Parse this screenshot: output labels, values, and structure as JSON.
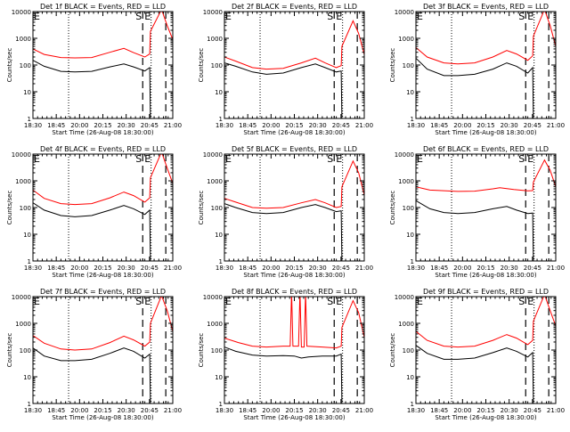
{
  "common": {
    "ylabel": "Counts/sec",
    "xlabel": "Start Time (26-Aug-08 18:30:00)",
    "x_ticks": [
      "18:30",
      "18:45",
      "20:00",
      "20:15",
      "20:30",
      "20:45",
      "21:00"
    ],
    "y_ticks": [
      "1",
      "10",
      "100",
      "1000",
      "10000"
    ],
    "y_log": true,
    "ylim": [
      1,
      10000
    ],
    "colors": {
      "events": "#000000",
      "lld": "#ff0000",
      "axes": "#000000"
    },
    "markers": {
      "left": "E",
      "middle": "S",
      "right": "E"
    }
  },
  "chart_data": [
    {
      "type": "line",
      "title": "Det 1f BLACK = Events, RED = LLD",
      "series": [
        {
          "name": "Events",
          "color": "#000000",
          "points": [
            [
              0,
              150
            ],
            [
              0.08,
              90
            ],
            [
              0.2,
              58
            ],
            [
              0.3,
              55
            ],
            [
              0.42,
              58
            ],
            [
              0.55,
              85
            ],
            [
              0.65,
              110
            ],
            [
              0.72,
              85
            ],
            [
              0.8,
              60
            ],
            [
              0.835,
              80
            ],
            [
              0.84,
              1
            ]
          ]
        },
        {
          "name": "LLD",
          "color": "#ff0000",
          "points": [
            [
              0,
              400
            ],
            [
              0.08,
              250
            ],
            [
              0.2,
              190
            ],
            [
              0.3,
              185
            ],
            [
              0.42,
              190
            ],
            [
              0.55,
              300
            ],
            [
              0.65,
              420
            ],
            [
              0.72,
              290
            ],
            [
              0.8,
              200
            ],
            [
              0.835,
              260
            ],
            [
              0.84,
              1800
            ],
            [
              0.92,
              12000
            ],
            [
              0.96,
              3000
            ],
            [
              1,
              900
            ]
          ]
        }
      ]
    },
    {
      "type": "line",
      "title": "Det 2f BLACK = Events, RED = LLD",
      "series": [
        {
          "name": "Events",
          "color": "#000000",
          "points": [
            [
              0,
              120
            ],
            [
              0.08,
              90
            ],
            [
              0.2,
              55
            ],
            [
              0.3,
              45
            ],
            [
              0.42,
              50
            ],
            [
              0.55,
              80
            ],
            [
              0.65,
              110
            ],
            [
              0.72,
              80
            ],
            [
              0.8,
              55
            ],
            [
              0.835,
              60
            ],
            [
              0.84,
              1
            ]
          ]
        },
        {
          "name": "LLD",
          "color": "#ff0000",
          "points": [
            [
              0,
              200
            ],
            [
              0.08,
              140
            ],
            [
              0.2,
              80
            ],
            [
              0.3,
              70
            ],
            [
              0.42,
              75
            ],
            [
              0.55,
              120
            ],
            [
              0.65,
              180
            ],
            [
              0.72,
              120
            ],
            [
              0.8,
              80
            ],
            [
              0.835,
              95
            ],
            [
              0.84,
              500
            ],
            [
              0.92,
              4500
            ],
            [
              0.96,
              1500
            ],
            [
              1,
              250
            ]
          ]
        }
      ]
    },
    {
      "type": "line",
      "title": "Det 3f BLACK = Events, RED = LLD",
      "series": [
        {
          "name": "Events",
          "color": "#000000",
          "points": [
            [
              0,
              180
            ],
            [
              0.08,
              70
            ],
            [
              0.2,
              40
            ],
            [
              0.3,
              40
            ],
            [
              0.42,
              45
            ],
            [
              0.55,
              70
            ],
            [
              0.65,
              120
            ],
            [
              0.72,
              90
            ],
            [
              0.8,
              50
            ],
            [
              0.835,
              80
            ],
            [
              0.84,
              1
            ]
          ]
        },
        {
          "name": "LLD",
          "color": "#ff0000",
          "points": [
            [
              0,
              450
            ],
            [
              0.08,
              200
            ],
            [
              0.2,
              120
            ],
            [
              0.3,
              110
            ],
            [
              0.42,
              120
            ],
            [
              0.55,
              200
            ],
            [
              0.65,
              350
            ],
            [
              0.72,
              260
            ],
            [
              0.8,
              150
            ],
            [
              0.835,
              220
            ],
            [
              0.84,
              1200
            ],
            [
              0.92,
              12000
            ],
            [
              0.96,
              3000
            ],
            [
              1,
              500
            ]
          ]
        }
      ]
    },
    {
      "type": "line",
      "title": "Det 4f BLACK = Events, RED = LLD",
      "series": [
        {
          "name": "Events",
          "color": "#000000",
          "points": [
            [
              0,
              150
            ],
            [
              0.08,
              80
            ],
            [
              0.2,
              50
            ],
            [
              0.3,
              45
            ],
            [
              0.42,
              50
            ],
            [
              0.55,
              80
            ],
            [
              0.65,
              120
            ],
            [
              0.72,
              90
            ],
            [
              0.8,
              55
            ],
            [
              0.835,
              80
            ],
            [
              0.84,
              1
            ]
          ]
        },
        {
          "name": "LLD",
          "color": "#ff0000",
          "points": [
            [
              0,
              450
            ],
            [
              0.08,
              220
            ],
            [
              0.2,
              140
            ],
            [
              0.3,
              130
            ],
            [
              0.42,
              140
            ],
            [
              0.55,
              230
            ],
            [
              0.65,
              380
            ],
            [
              0.72,
              280
            ],
            [
              0.8,
              160
            ],
            [
              0.835,
              230
            ],
            [
              0.84,
              1300
            ],
            [
              0.92,
              12000
            ],
            [
              0.96,
              3000
            ],
            [
              1,
              800
            ]
          ]
        }
      ]
    },
    {
      "type": "line",
      "title": "Det 5f BLACK = Events, RED = LLD",
      "series": [
        {
          "name": "Events",
          "color": "#000000",
          "points": [
            [
              0,
              140
            ],
            [
              0.08,
              100
            ],
            [
              0.2,
              65
            ],
            [
              0.3,
              60
            ],
            [
              0.42,
              65
            ],
            [
              0.55,
              100
            ],
            [
              0.65,
              130
            ],
            [
              0.72,
              100
            ],
            [
              0.8,
              70
            ],
            [
              0.835,
              75
            ],
            [
              0.84,
              1
            ]
          ]
        },
        {
          "name": "LLD",
          "color": "#ff0000",
          "points": [
            [
              0,
              220
            ],
            [
              0.08,
              160
            ],
            [
              0.2,
              100
            ],
            [
              0.3,
              95
            ],
            [
              0.42,
              100
            ],
            [
              0.55,
              150
            ],
            [
              0.65,
              200
            ],
            [
              0.72,
              150
            ],
            [
              0.8,
              100
            ],
            [
              0.835,
              110
            ],
            [
              0.84,
              600
            ],
            [
              0.92,
              5500
            ],
            [
              0.96,
              2000
            ],
            [
              1,
              300
            ]
          ]
        }
      ]
    },
    {
      "type": "line",
      "title": "Det 6f BLACK = Events, RED = LLD",
      "series": [
        {
          "name": "Events",
          "color": "#000000",
          "points": [
            [
              0,
              180
            ],
            [
              0.1,
              90
            ],
            [
              0.2,
              65
            ],
            [
              0.3,
              60
            ],
            [
              0.42,
              65
            ],
            [
              0.55,
              90
            ],
            [
              0.65,
              110
            ],
            [
              0.72,
              80
            ],
            [
              0.8,
              60
            ],
            [
              0.835,
              62
            ],
            [
              0.84,
              1
            ]
          ]
        },
        {
          "name": "LLD",
          "color": "#ff0000",
          "points": [
            [
              0,
              600
            ],
            [
              0.1,
              450
            ],
            [
              0.3,
              400
            ],
            [
              0.42,
              410
            ],
            [
              0.55,
              500
            ],
            [
              0.6,
              550
            ],
            [
              0.7,
              470
            ],
            [
              0.8,
              420
            ],
            [
              0.835,
              430
            ],
            [
              0.84,
              900
            ],
            [
              0.92,
              6000
            ],
            [
              0.96,
              2500
            ],
            [
              1,
              600
            ]
          ]
        }
      ]
    },
    {
      "type": "line",
      "title": "Det 7f BLACK = Events, RED = LLD",
      "series": [
        {
          "name": "Events",
          "color": "#000000",
          "points": [
            [
              0,
              120
            ],
            [
              0.08,
              60
            ],
            [
              0.2,
              40
            ],
            [
              0.3,
              40
            ],
            [
              0.42,
              45
            ],
            [
              0.55,
              75
            ],
            [
              0.65,
              120
            ],
            [
              0.72,
              90
            ],
            [
              0.8,
              50
            ],
            [
              0.835,
              70
            ],
            [
              0.84,
              1
            ]
          ]
        },
        {
          "name": "LLD",
          "color": "#ff0000",
          "points": [
            [
              0,
              350
            ],
            [
              0.08,
              180
            ],
            [
              0.2,
              110
            ],
            [
              0.3,
              100
            ],
            [
              0.42,
              110
            ],
            [
              0.55,
              190
            ],
            [
              0.65,
              330
            ],
            [
              0.72,
              240
            ],
            [
              0.8,
              140
            ],
            [
              0.835,
              200
            ],
            [
              0.84,
              1000
            ],
            [
              0.92,
              11000
            ],
            [
              0.96,
              3000
            ],
            [
              1,
              500
            ]
          ]
        }
      ]
    },
    {
      "type": "line",
      "title": "Det 8f BLACK = Events, RED = LLD",
      "series": [
        {
          "name": "Events",
          "color": "#000000",
          "points": [
            [
              0,
              130
            ],
            [
              0.08,
              90
            ],
            [
              0.2,
              65
            ],
            [
              0.3,
              60
            ],
            [
              0.42,
              62
            ],
            [
              0.5,
              60
            ],
            [
              0.55,
              50
            ],
            [
              0.6,
              55
            ],
            [
              0.7,
              60
            ],
            [
              0.8,
              60
            ],
            [
              0.835,
              70
            ],
            [
              0.84,
              1
            ]
          ]
        },
        {
          "name": "LLD",
          "color": "#ff0000",
          "points": [
            [
              0,
              280
            ],
            [
              0.1,
              190
            ],
            [
              0.2,
              140
            ],
            [
              0.3,
              130
            ],
            [
              0.42,
              140
            ],
            [
              0.47,
              140
            ],
            [
              0.48,
              15000
            ],
            [
              0.49,
              140
            ],
            [
              0.53,
              140
            ],
            [
              0.54,
              15000
            ],
            [
              0.55,
              130
            ],
            [
              0.57,
              130
            ],
            [
              0.58,
              15000
            ],
            [
              0.59,
              140
            ],
            [
              0.7,
              130
            ],
            [
              0.8,
              120
            ],
            [
              0.835,
              140
            ],
            [
              0.84,
              700
            ],
            [
              0.92,
              7000
            ],
            [
              0.96,
              2500
            ],
            [
              1,
              300
            ]
          ]
        }
      ]
    },
    {
      "type": "line",
      "title": "Det 9f BLACK = Events, RED = LLD",
      "series": [
        {
          "name": "Events",
          "color": "#000000",
          "points": [
            [
              0,
              150
            ],
            [
              0.08,
              75
            ],
            [
              0.2,
              45
            ],
            [
              0.3,
              45
            ],
            [
              0.42,
              50
            ],
            [
              0.55,
              80
            ],
            [
              0.65,
              120
            ],
            [
              0.72,
              90
            ],
            [
              0.8,
              55
            ],
            [
              0.835,
              80
            ],
            [
              0.84,
              1
            ]
          ]
        },
        {
          "name": "LLD",
          "color": "#ff0000",
          "points": [
            [
              0,
              500
            ],
            [
              0.08,
              230
            ],
            [
              0.2,
              140
            ],
            [
              0.3,
              130
            ],
            [
              0.42,
              140
            ],
            [
              0.55,
              230
            ],
            [
              0.65,
              380
            ],
            [
              0.72,
              280
            ],
            [
              0.8,
              160
            ],
            [
              0.835,
              230
            ],
            [
              0.84,
              1200
            ],
            [
              0.92,
              12000
            ],
            [
              0.96,
              3000
            ],
            [
              1,
              800
            ]
          ]
        }
      ]
    }
  ]
}
